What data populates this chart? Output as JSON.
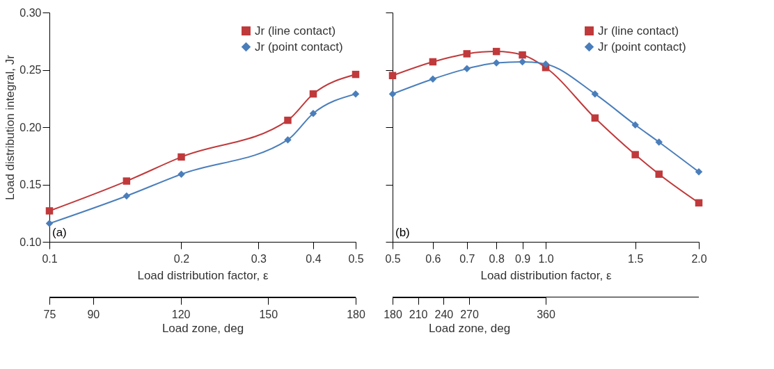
{
  "chart_data": [
    {
      "type": "line",
      "xlabel": "Load distribution factor, ε",
      "ylabel": "Load distribution integral, Jr",
      "x2label": "Load zone, deg",
      "log": "x",
      "legend": "top right",
      "grid": false,
      "line_style": "solid",
      "annotations": [
        "(a)"
      ],
      "x": [
        0.1,
        0.15,
        0.2,
        0.35,
        0.4,
        0.5
      ],
      "xlim": [
        0.1,
        0.5
      ],
      "xticks": [
        0.1,
        0.2,
        0.3,
        0.4,
        0.5
      ],
      "ylim": [
        0.1,
        0.3
      ],
      "yticks": [
        {
          "value": 0.1,
          "label": "0.10"
        },
        {
          "value": 0.15,
          "label": "0.15"
        },
        {
          "value": 0.2,
          "label": "0.20"
        },
        {
          "value": 0.25,
          "label": "0.25"
        },
        {
          "value": 0.3,
          "label": "0.30"
        }
      ],
      "x2lim": [
        75,
        180
      ],
      "x2ticks": [
        75,
        90,
        120,
        150,
        180
      ],
      "series": [
        {
          "name": "Jr (line contact)",
          "color": "#c0393b",
          "marker": "square",
          "values": [
            0.127,
            0.153,
            0.174,
            0.206,
            0.229,
            0.246
          ]
        },
        {
          "name": "Jr (point contact)",
          "color": "#4a7ebb",
          "marker": "diamond",
          "values": [
            0.116,
            0.14,
            0.159,
            0.189,
            0.212,
            0.229
          ]
        }
      ]
    },
    {
      "type": "line",
      "xlabel": "Load distribution factor, ε",
      "x2label": "Load zone, deg",
      "log": "x",
      "legend": "top right",
      "grid": false,
      "line_style": "solid",
      "tick_labels": "x",
      "annotations": [
        "(b)"
      ],
      "x": [
        0.5,
        0.6,
        0.7,
        0.8,
        0.9,
        1.0,
        1.25,
        1.5,
        1.67,
        2.0
      ],
      "xlim": [
        0.5,
        2.0
      ],
      "xticks": [
        0.5,
        0.6,
        0.7,
        0.8,
        0.9,
        {
          "value": 1.0,
          "label": "1.0"
        },
        1.5,
        {
          "value": 2.0,
          "label": "2.0"
        }
      ],
      "ylim": [
        0.1,
        0.3
      ],
      "yticks": [
        0.1,
        0.15,
        0.2,
        0.25,
        0.3
      ],
      "x2lim": [
        180,
        360
      ],
      "x2ticks": [
        180,
        210,
        240,
        270,
        360
      ],
      "series": [
        {
          "name": "Jr (line contact)",
          "color": "#c0393b",
          "marker": "square",
          "values": [
            0.245,
            0.257,
            0.264,
            0.266,
            0.263,
            0.252,
            0.208,
            0.176,
            0.159,
            0.134
          ]
        },
        {
          "name": "Jr (point contact)",
          "color": "#4a7ebb",
          "marker": "diamond",
          "values": [
            0.229,
            0.242,
            0.251,
            0.256,
            0.257,
            0.255,
            0.229,
            0.202,
            0.187,
            0.161
          ]
        }
      ]
    }
  ]
}
